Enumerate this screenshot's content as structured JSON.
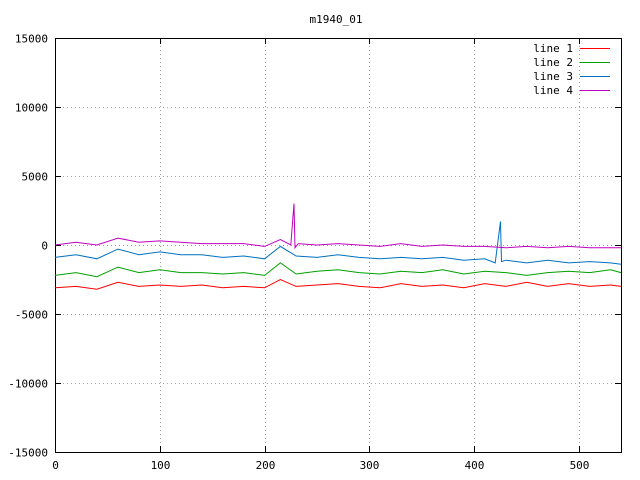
{
  "chart_data": {
    "type": "line",
    "title": "m1940_01",
    "xlabel": "",
    "ylabel": "",
    "xlim": [
      0,
      540
    ],
    "ylim": [
      -15000,
      15000
    ],
    "x_ticks": [
      0,
      100,
      200,
      300,
      400,
      500
    ],
    "y_ticks": [
      -15000,
      -10000,
      -5000,
      0,
      5000,
      10000,
      15000
    ],
    "grid": true,
    "legend_position": "top-right",
    "series": [
      {
        "name": "line 1",
        "color": "#ff0000",
        "x": [
          0,
          20,
          40,
          60,
          80,
          100,
          120,
          140,
          160,
          180,
          200,
          215,
          230,
          250,
          270,
          290,
          310,
          330,
          350,
          370,
          390,
          410,
          430,
          450,
          470,
          490,
          510,
          530,
          540
        ],
        "y": [
          -3100,
          -3000,
          -3200,
          -2700,
          -3000,
          -2900,
          -3000,
          -2900,
          -3100,
          -3000,
          -3100,
          -2500,
          -3000,
          -2900,
          -2800,
          -3000,
          -3100,
          -2800,
          -3000,
          -2900,
          -3100,
          -2800,
          -3000,
          -2700,
          -3000,
          -2800,
          -3000,
          -2900,
          -3000
        ]
      },
      {
        "name": "line 2",
        "color": "#00a000",
        "x": [
          0,
          20,
          40,
          60,
          80,
          100,
          120,
          140,
          160,
          180,
          200,
          215,
          230,
          250,
          270,
          290,
          310,
          330,
          350,
          370,
          390,
          410,
          430,
          450,
          470,
          490,
          510,
          530,
          540
        ],
        "y": [
          -2200,
          -2000,
          -2300,
          -1600,
          -2000,
          -1800,
          -2000,
          -2000,
          -2100,
          -2000,
          -2200,
          -1300,
          -2100,
          -1900,
          -1800,
          -2000,
          -2100,
          -1900,
          -2000,
          -1800,
          -2100,
          -1900,
          -2000,
          -2200,
          -2000,
          -1900,
          -2000,
          -1800,
          -2000
        ]
      },
      {
        "name": "line 3",
        "color": "#0070c0",
        "x": [
          0,
          20,
          40,
          60,
          80,
          100,
          120,
          140,
          160,
          180,
          200,
          215,
          230,
          250,
          270,
          290,
          310,
          330,
          350,
          370,
          390,
          410,
          420,
          425,
          426,
          430,
          450,
          470,
          490,
          510,
          530,
          540
        ],
        "y": [
          -900,
          -700,
          -1000,
          -300,
          -700,
          -500,
          -700,
          -700,
          -900,
          -800,
          -1000,
          -100,
          -800,
          -900,
          -700,
          -900,
          -1000,
          -900,
          -1000,
          -900,
          -1100,
          -1000,
          -1300,
          1700,
          -1200,
          -1100,
          -1300,
          -1100,
          -1300,
          -1200,
          -1300,
          -1400
        ]
      },
      {
        "name": "line 4",
        "color": "#c000c0",
        "x": [
          0,
          20,
          40,
          60,
          80,
          100,
          120,
          140,
          160,
          180,
          200,
          215,
          225,
          228,
          229,
          232,
          250,
          270,
          290,
          310,
          330,
          350,
          370,
          390,
          410,
          430,
          450,
          470,
          490,
          510,
          530,
          540
        ],
        "y": [
          0,
          200,
          0,
          500,
          200,
          300,
          200,
          100,
          100,
          100,
          -100,
          400,
          0,
          3000,
          -200,
          100,
          0,
          100,
          0,
          -100,
          100,
          -100,
          0,
          -100,
          -100,
          -200,
          -100,
          -200,
          -100,
          -200,
          -200,
          -200
        ]
      }
    ]
  }
}
